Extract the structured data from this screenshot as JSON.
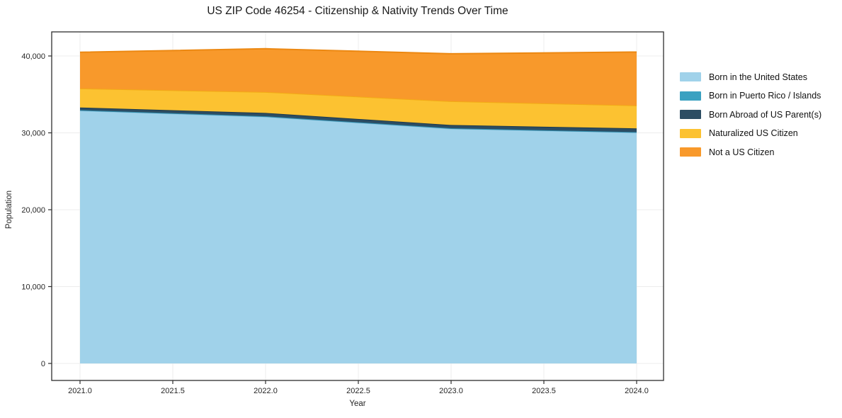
{
  "chart_data": {
    "type": "area",
    "stacked": true,
    "title": "US ZIP Code 46254 - Citizenship & Nativity Trends Over Time",
    "xlabel": "Year",
    "ylabel": "Population",
    "legend_position": "right-outside",
    "grid": true,
    "x": [
      2021,
      2022,
      2023,
      2024
    ],
    "series": [
      {
        "name": "Born in the United States",
        "color": "#a0d2ea",
        "line_color": "#8bc2dd",
        "values": [
          32900,
          32100,
          30550,
          30050
        ]
      },
      {
        "name": "Born in Puerto Rico / Islands",
        "color": "#3aa1c1",
        "line_color": "#2e8bab",
        "values": [
          60,
          60,
          50,
          50
        ]
      },
      {
        "name": "Born Abroad of US Parent(s)",
        "color": "#2c4d63",
        "line_color": "#1d3a4e",
        "values": [
          340,
          430,
          420,
          480
        ]
      },
      {
        "name": "Naturalized US Citizen",
        "color": "#fcc231",
        "line_color": "#f2ab15",
        "values": [
          2470,
          2720,
          3090,
          2980
        ]
      },
      {
        "name": "Not a US Citizen",
        "color": "#f8992b",
        "line_color": "#ec8812",
        "values": [
          4710,
          5630,
          6180,
          6950
        ]
      }
    ],
    "totals": [
      40480,
      40940,
      40290,
      40510
    ],
    "x_ticks": {
      "values": [
        2021.0,
        2021.5,
        2022.0,
        2022.5,
        2023.0,
        2023.5,
        2024.0
      ],
      "labels": [
        "2021.0",
        "2021.5",
        "2022.0",
        "2022.5",
        "2023.0",
        "2023.5",
        "2024.0"
      ]
    },
    "y_ticks": {
      "values": [
        0,
        10000,
        20000,
        30000,
        40000
      ],
      "labels": [
        "0",
        "10,000",
        "20,000",
        "30,000",
        "40,000"
      ]
    },
    "xlim": [
      2020.85,
      2024.15
    ],
    "ylim": [
      -2200,
      43100
    ],
    "colors": {
      "grid": "#ececec",
      "axis_frame": "#2e2e2e",
      "tick_text": "#262626",
      "background": "#ffffff"
    }
  }
}
